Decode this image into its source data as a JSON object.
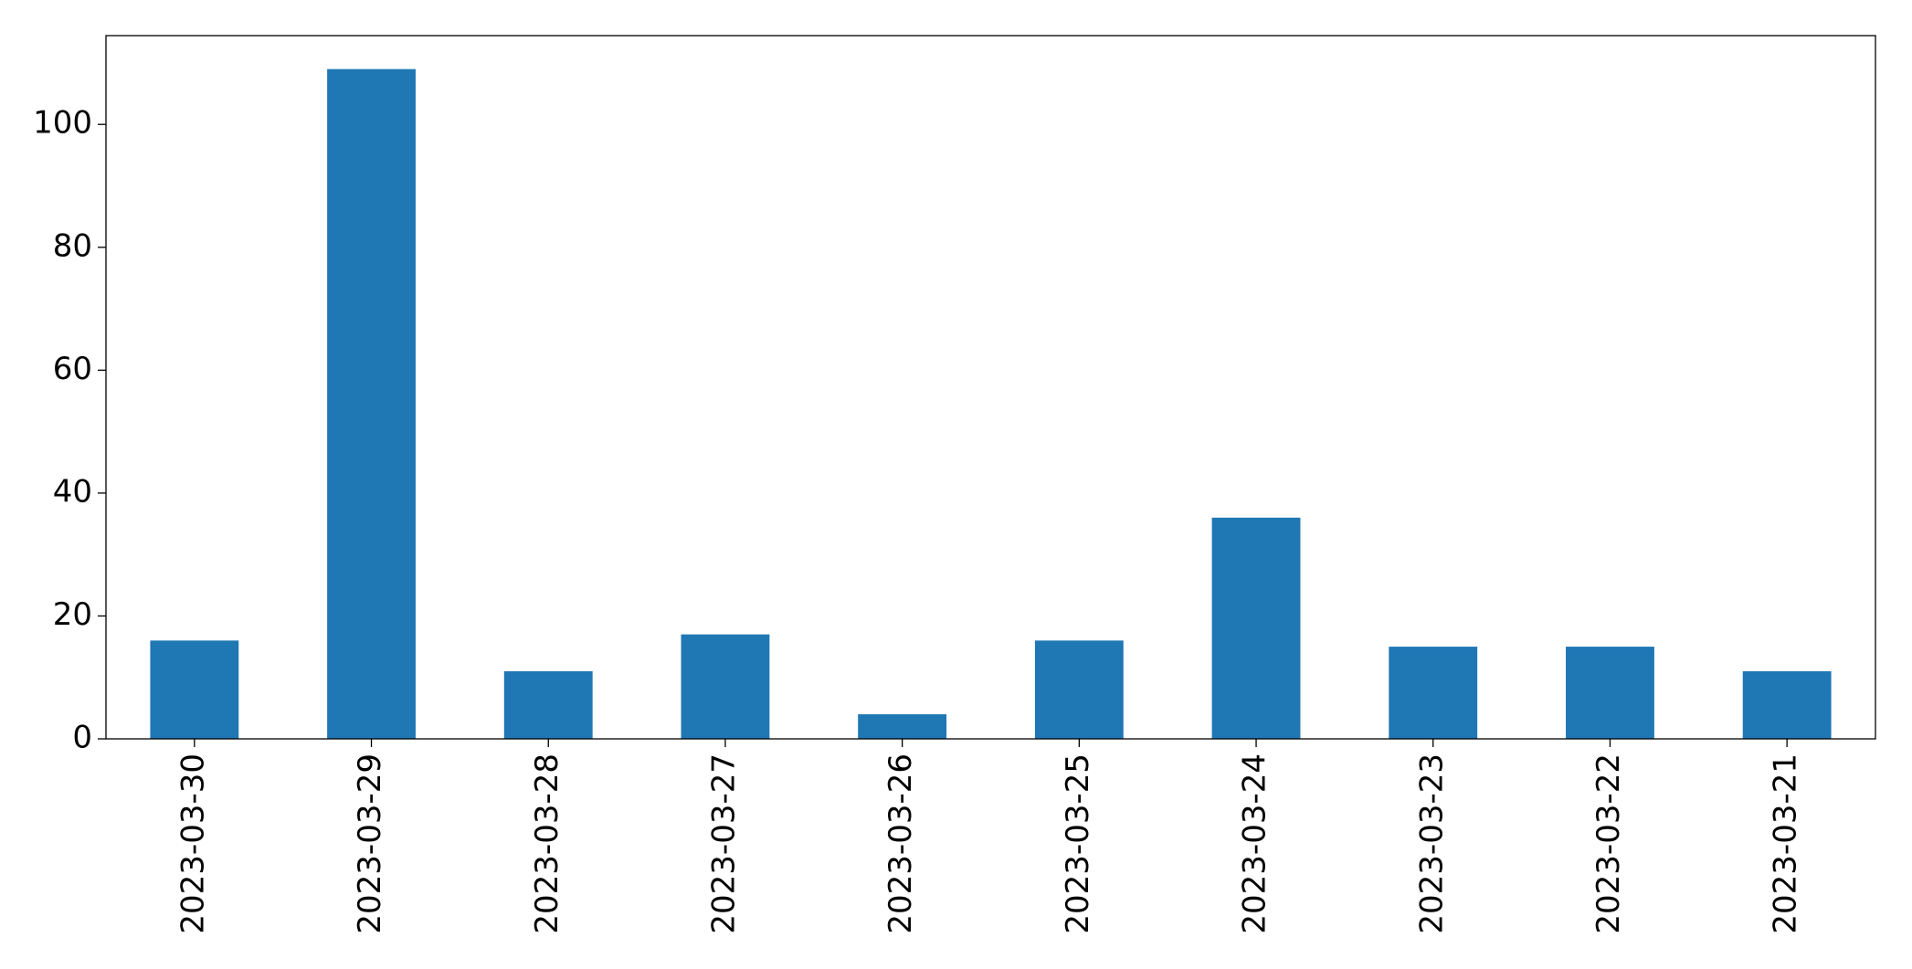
{
  "chart_data": {
    "type": "bar",
    "categories": [
      "2023-03-30",
      "2023-03-29",
      "2023-03-28",
      "2023-03-27",
      "2023-03-26",
      "2023-03-25",
      "2023-03-24",
      "2023-03-23",
      "2023-03-22",
      "2023-03-21"
    ],
    "values": [
      16,
      109,
      11,
      17,
      4,
      16,
      36,
      15,
      15,
      11
    ],
    "color": "#1f77b4",
    "ylim": [
      0,
      114.45
    ],
    "yticks": [
      0,
      20,
      40,
      60,
      80,
      100
    ],
    "grid": false
  }
}
